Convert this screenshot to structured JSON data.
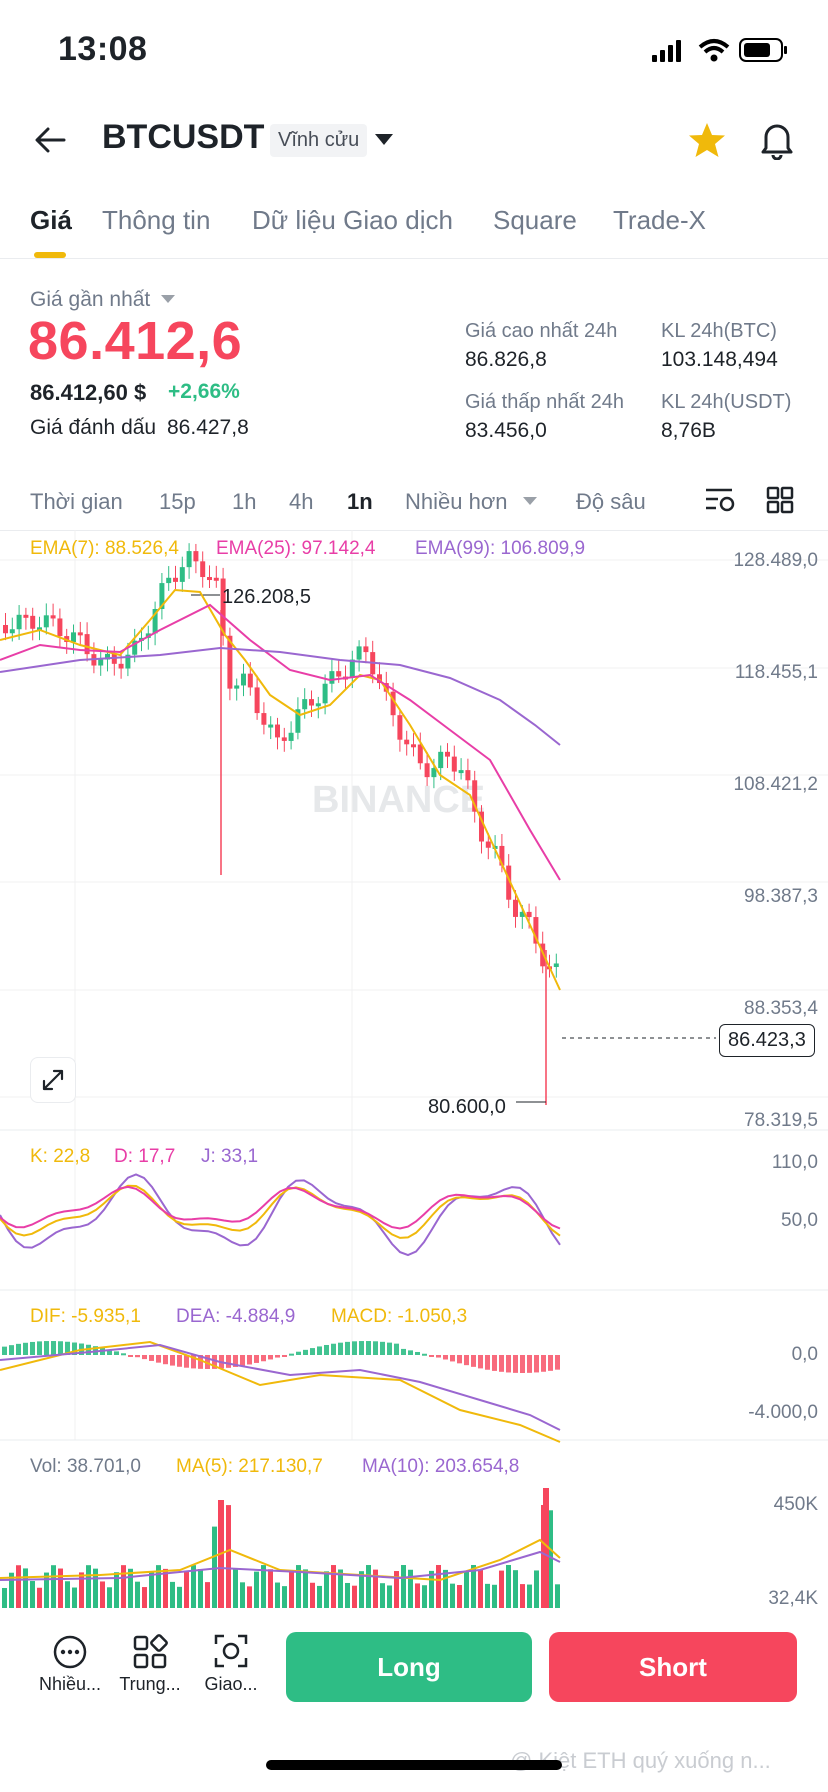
{
  "status_bar": {
    "time": "13:08"
  },
  "header": {
    "symbol": "BTCUSDT",
    "contract_type": "Vĩnh cửu"
  },
  "tabs": [
    "Giá",
    "Thông tin",
    "Dữ liệu Giao dịch",
    "Square",
    "Trade-X"
  ],
  "price": {
    "last_label": "Giá gần nhất",
    "last": "86.412,6",
    "usd": "86.412,60 $",
    "change": "+2,66%",
    "mark_label": "Giá đánh dấu",
    "mark": "86.427,8"
  },
  "stats": {
    "high_label": "Giá cao nhất 24h",
    "high": "86.826,8",
    "low_label": "Giá thấp nhất 24h",
    "low": "83.456,0",
    "vol_btc_label": "KL 24h(BTC)",
    "vol_btc": "103.148,494",
    "vol_usdt_label": "KL 24h(USDT)",
    "vol_usdt": "8,76B"
  },
  "timeframes": {
    "time": "Thời gian",
    "m15": "15p",
    "h1": "1h",
    "h4": "4h",
    "d1": "1n",
    "more": "Nhiều hơn",
    "depth": "Độ sâu"
  },
  "ema": {
    "ema7": "EMA(7): 88.526,4",
    "ema25": "EMA(25): 97.142,4",
    "ema99": "EMA(99): 106.809,9"
  },
  "price_axis": [
    "128.489,0",
    "118.455,1",
    "108.421,2",
    "98.387,3",
    "88.353,4",
    "78.319,5"
  ],
  "current_price_tag": "86.423,3",
  "high_marker": "126.208,5",
  "low_marker": "80.600,0",
  "watermark": "BINANCE",
  "kdj": {
    "k": "K: 22,8",
    "d": "D: 17,7",
    "j": "J: 33,1",
    "axis_top": "110,0",
    "axis_mid": "50,0"
  },
  "macd": {
    "dif": "DIF: -5.935,1",
    "dea": "DEA: -4.884,9",
    "macd": "MACD: -1.050,3",
    "axis_top": "0,0",
    "axis_bottom": "-4.000,0"
  },
  "volume": {
    "vol": "Vol: 38.701,0",
    "ma5": "MA(5): 217.130,7",
    "ma10": "MA(10): 203.654,8",
    "axis_top": "450K",
    "axis_bottom": "32,4K"
  },
  "bottom_nav": {
    "more": "Nhiều...",
    "center": "Trung...",
    "trade": "Giao...",
    "long": "Long",
    "short": "Short"
  },
  "overlay_text": "@ Kiệt ETH quý xuống n...",
  "colors": {
    "up": "#2ebd85",
    "down": "#f6465d",
    "accent": "#f0b90b",
    "ema7": "#f0b90b",
    "ema25": "#e83ea7",
    "ema99": "#9a67d0"
  }
}
